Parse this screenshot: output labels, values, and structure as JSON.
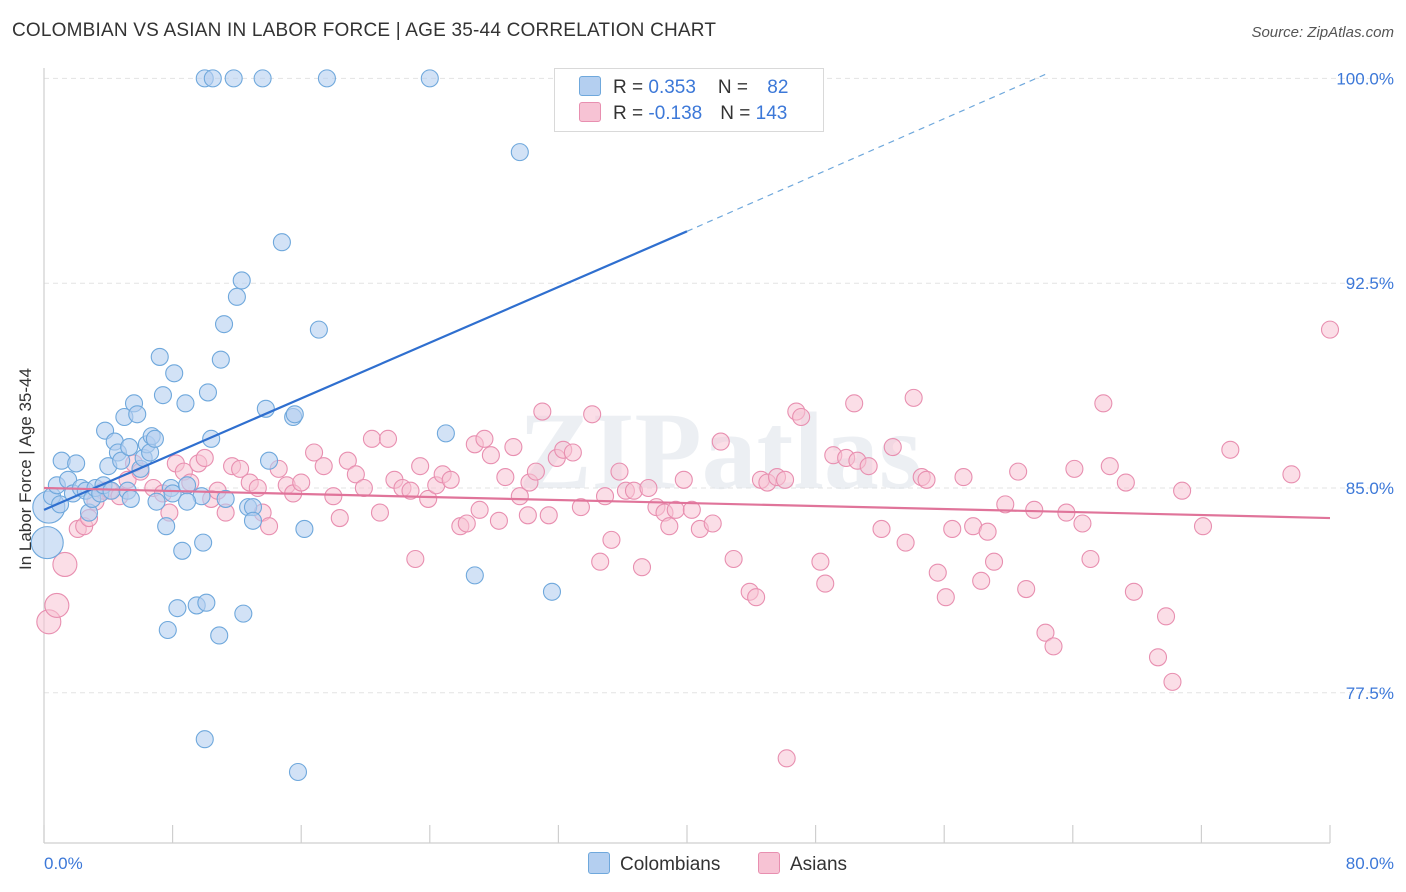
{
  "title": "COLOMBIAN VS ASIAN IN LABOR FORCE | AGE 35-44 CORRELATION CHART",
  "source": "Source: ZipAtlas.com",
  "watermark": "ZIPatlas",
  "colors": {
    "colombians": "#6fa8dc",
    "colombians_fill": "#b4cff0",
    "colombians_line": "#2f6fcf",
    "asians": "#e88fb0",
    "asians_fill": "#f7c3d4",
    "asians_line": "#e0749a",
    "axis_label": "#3c78d8",
    "grid": "#e3e3e3"
  },
  "legend": {
    "rows": [
      {
        "r_label": "R = ",
        "r_value": "0.353",
        "n_label": "N = ",
        "n_value": "82"
      },
      {
        "r_label": "R = ",
        "r_value": "-0.138",
        "n_label": "N = ",
        "n_value": "143"
      }
    ]
  },
  "chart_data": {
    "type": "scatter",
    "xlabel": "",
    "ylabel": "In Labor Force | Age 35-44",
    "xlim": [
      0,
      80
    ],
    "ylim": [
      72,
      100.6
    ],
    "x_tick_labels": [
      "0.0%",
      "80.0%"
    ],
    "y_ticks": [
      77.5,
      85.0,
      92.5,
      100.0
    ],
    "y_tick_labels": [
      "77.5%",
      "85.0%",
      "92.5%",
      "100.0%"
    ],
    "grid": true,
    "legend_position": "bottom-center",
    "series": [
      {
        "name": "Colombians",
        "r": 0.353,
        "n": 82,
        "trend": {
          "x0": 0,
          "y0": 84.2,
          "x1": 40,
          "y1": 94.4,
          "dashed_to_x": 62.5,
          "dashed_to_y": 100.2
        },
        "points": [
          [
            0.2,
            83.0
          ],
          [
            0.3,
            84.3
          ],
          [
            0.5,
            84.7
          ],
          [
            0.8,
            85.1
          ],
          [
            1.0,
            84.4
          ],
          [
            1.1,
            86.0
          ],
          [
            1.5,
            85.3
          ],
          [
            1.8,
            84.8
          ],
          [
            2.0,
            85.9
          ],
          [
            2.3,
            85.0
          ],
          [
            2.6,
            84.9
          ],
          [
            2.8,
            84.1
          ],
          [
            3.0,
            84.6
          ],
          [
            3.2,
            85.0
          ],
          [
            3.5,
            84.8
          ],
          [
            3.7,
            85.1
          ],
          [
            3.8,
            87.1
          ],
          [
            4.0,
            85.8
          ],
          [
            4.2,
            84.9
          ],
          [
            4.4,
            86.7
          ],
          [
            4.6,
            86.3
          ],
          [
            4.8,
            86.0
          ],
          [
            5.0,
            87.6
          ],
          [
            5.2,
            84.9
          ],
          [
            5.4,
            84.6
          ],
          [
            5.3,
            86.5
          ],
          [
            5.6,
            88.1
          ],
          [
            5.8,
            87.7
          ],
          [
            6.0,
            85.7
          ],
          [
            6.2,
            86.1
          ],
          [
            6.4,
            86.6
          ],
          [
            6.6,
            86.3
          ],
          [
            6.7,
            86.9
          ],
          [
            6.9,
            86.8
          ],
          [
            7.0,
            84.5
          ],
          [
            7.2,
            89.8
          ],
          [
            7.4,
            88.4
          ],
          [
            7.6,
            83.6
          ],
          [
            7.7,
            79.8
          ],
          [
            7.9,
            85.0
          ],
          [
            8.1,
            89.2
          ],
          [
            8.0,
            84.8
          ],
          [
            8.3,
            80.6
          ],
          [
            8.6,
            82.7
          ],
          [
            8.8,
            88.1
          ],
          [
            8.9,
            85.1
          ],
          [
            9.5,
            80.7
          ],
          [
            9.8,
            84.7
          ],
          [
            9.9,
            83.0
          ],
          [
            10.1,
            80.8
          ],
          [
            10.2,
            88.5
          ],
          [
            10.4,
            86.8
          ],
          [
            10.9,
            79.6
          ],
          [
            11.0,
            89.7
          ],
          [
            11.2,
            91.0
          ],
          [
            11.3,
            84.6
          ],
          [
            12.0,
            92.0
          ],
          [
            12.3,
            92.6
          ],
          [
            12.7,
            84.3
          ],
          [
            13.0,
            84.3
          ],
          [
            13.0,
            83.8
          ],
          [
            13.8,
            87.9
          ],
          [
            14.0,
            86.0
          ],
          [
            14.8,
            94.0
          ],
          [
            15.5,
            87.6
          ],
          [
            15.6,
            87.7
          ],
          [
            16.2,
            83.5
          ],
          [
            17.1,
            90.8
          ],
          [
            10.0,
            100.0
          ],
          [
            11.8,
            100.0
          ],
          [
            13.6,
            100.0
          ],
          [
            17.6,
            100.0
          ],
          [
            24.0,
            100.0
          ],
          [
            29.6,
            97.3
          ],
          [
            25.0,
            87.0
          ],
          [
            26.8,
            81.8
          ],
          [
            31.6,
            81.2
          ],
          [
            10.0,
            75.8
          ],
          [
            15.8,
            74.6
          ],
          [
            12.4,
            80.4
          ],
          [
            10.5,
            100.0
          ],
          [
            8.9,
            84.5
          ]
        ]
      },
      {
        "name": "Asians",
        "r": -0.138,
        "n": 143,
        "trend": {
          "x0": 0,
          "y0": 85.0,
          "x1": 80,
          "y1": 83.9
        },
        "points": [
          [
            0.3,
            80.1
          ],
          [
            0.8,
            80.7
          ],
          [
            1.3,
            82.2
          ],
          [
            2.1,
            83.5
          ],
          [
            2.5,
            83.6
          ],
          [
            2.8,
            83.9
          ],
          [
            3.2,
            84.5
          ],
          [
            3.7,
            84.9
          ],
          [
            4.1,
            84.9
          ],
          [
            4.7,
            84.7
          ],
          [
            5.2,
            85.3
          ],
          [
            5.6,
            85.9
          ],
          [
            6.0,
            85.6
          ],
          [
            6.8,
            85.0
          ],
          [
            7.4,
            84.8
          ],
          [
            7.8,
            84.1
          ],
          [
            8.2,
            85.9
          ],
          [
            8.7,
            85.6
          ],
          [
            9.1,
            85.2
          ],
          [
            9.6,
            85.9
          ],
          [
            10.0,
            86.1
          ],
          [
            10.4,
            84.6
          ],
          [
            10.8,
            84.9
          ],
          [
            11.3,
            84.1
          ],
          [
            11.7,
            85.8
          ],
          [
            12.2,
            85.7
          ],
          [
            12.8,
            85.2
          ],
          [
            13.3,
            85.0
          ],
          [
            13.6,
            84.1
          ],
          [
            14.0,
            83.6
          ],
          [
            14.6,
            85.7
          ],
          [
            15.1,
            85.1
          ],
          [
            15.5,
            84.8
          ],
          [
            16.0,
            85.2
          ],
          [
            16.8,
            86.3
          ],
          [
            17.4,
            85.8
          ],
          [
            18.0,
            84.7
          ],
          [
            18.4,
            83.9
          ],
          [
            18.9,
            86.0
          ],
          [
            19.4,
            85.5
          ],
          [
            19.9,
            85.0
          ],
          [
            20.4,
            86.8
          ],
          [
            20.9,
            84.1
          ],
          [
            21.4,
            86.8
          ],
          [
            21.8,
            85.3
          ],
          [
            22.3,
            85.0
          ],
          [
            22.8,
            84.9
          ],
          [
            23.1,
            82.4
          ],
          [
            23.4,
            85.8
          ],
          [
            23.9,
            84.6
          ],
          [
            24.4,
            85.1
          ],
          [
            24.8,
            85.5
          ],
          [
            25.3,
            85.3
          ],
          [
            25.9,
            83.6
          ],
          [
            26.3,
            83.7
          ],
          [
            26.8,
            86.6
          ],
          [
            27.1,
            84.2
          ],
          [
            27.4,
            86.8
          ],
          [
            27.8,
            86.2
          ],
          [
            28.3,
            83.8
          ],
          [
            28.7,
            85.4
          ],
          [
            29.2,
            86.5
          ],
          [
            29.6,
            84.7
          ],
          [
            30.2,
            85.2
          ],
          [
            30.6,
            85.6
          ],
          [
            31.0,
            87.8
          ],
          [
            31.4,
            84.0
          ],
          [
            31.9,
            86.1
          ],
          [
            32.3,
            86.4
          ],
          [
            32.9,
            86.3
          ],
          [
            33.4,
            84.3
          ],
          [
            34.1,
            87.7
          ],
          [
            34.6,
            82.3
          ],
          [
            34.9,
            84.7
          ],
          [
            35.3,
            83.1
          ],
          [
            35.8,
            85.6
          ],
          [
            36.2,
            84.9
          ],
          [
            36.7,
            84.9
          ],
          [
            37.2,
            82.1
          ],
          [
            37.6,
            85.0
          ],
          [
            38.1,
            84.3
          ],
          [
            38.6,
            84.1
          ],
          [
            38.9,
            83.6
          ],
          [
            39.3,
            84.2
          ],
          [
            39.8,
            85.3
          ],
          [
            40.3,
            84.2
          ],
          [
            40.8,
            83.5
          ],
          [
            41.6,
            83.7
          ],
          [
            42.1,
            86.7
          ],
          [
            42.9,
            82.4
          ],
          [
            43.9,
            81.2
          ],
          [
            44.6,
            85.3
          ],
          [
            45.0,
            85.2
          ],
          [
            45.6,
            85.4
          ],
          [
            46.1,
            85.3
          ],
          [
            46.8,
            87.8
          ],
          [
            47.1,
            87.6
          ],
          [
            48.3,
            82.3
          ],
          [
            48.6,
            81.5
          ],
          [
            49.1,
            86.2
          ],
          [
            49.9,
            86.1
          ],
          [
            50.4,
            88.1
          ],
          [
            50.6,
            86.0
          ],
          [
            51.3,
            85.8
          ],
          [
            52.1,
            83.5
          ],
          [
            52.8,
            86.5
          ],
          [
            53.6,
            83.0
          ],
          [
            54.1,
            88.3
          ],
          [
            54.6,
            85.4
          ],
          [
            54.9,
            85.3
          ],
          [
            55.6,
            81.9
          ],
          [
            56.1,
            81.0
          ],
          [
            56.5,
            83.5
          ],
          [
            57.2,
            85.4
          ],
          [
            57.8,
            83.6
          ],
          [
            58.3,
            81.6
          ],
          [
            58.7,
            83.4
          ],
          [
            59.1,
            82.3
          ],
          [
            59.8,
            84.4
          ],
          [
            60.6,
            85.6
          ],
          [
            61.1,
            81.3
          ],
          [
            61.6,
            84.2
          ],
          [
            62.3,
            79.7
          ],
          [
            62.8,
            79.2
          ],
          [
            63.6,
            84.1
          ],
          [
            64.1,
            85.7
          ],
          [
            64.6,
            83.7
          ],
          [
            65.1,
            82.4
          ],
          [
            65.9,
            88.1
          ],
          [
            66.3,
            85.8
          ],
          [
            67.3,
            85.2
          ],
          [
            67.8,
            81.2
          ],
          [
            69.3,
            78.8
          ],
          [
            69.8,
            80.3
          ],
          [
            70.2,
            77.9
          ],
          [
            70.8,
            84.9
          ],
          [
            72.1,
            83.6
          ],
          [
            73.8,
            86.4
          ],
          [
            77.6,
            85.5
          ],
          [
            80.0,
            90.8
          ],
          [
            46.2,
            75.1
          ],
          [
            44.3,
            81.0
          ],
          [
            30.1,
            84.0
          ]
        ]
      }
    ]
  }
}
